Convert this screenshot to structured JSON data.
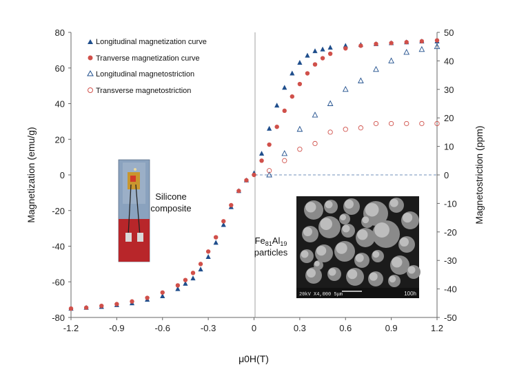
{
  "chart_data": {
    "type": "scatter",
    "title": "",
    "xlabel": "μ0H(T)",
    "ylabel": "Magnetization (emu/g)",
    "y2label": "Magnetostriction (ppm)",
    "xlim": [
      -1.2,
      1.2
    ],
    "ylim": [
      -80,
      80
    ],
    "y2lim": [
      -50,
      50
    ],
    "x_ticks": [
      "-1.2",
      "-0.9",
      "-0.6",
      "-0.3",
      "0",
      "0.3",
      "0.6",
      "0.9",
      "1.2"
    ],
    "y_ticks": [
      "80",
      "60",
      "40",
      "20",
      "0",
      "-20",
      "-40",
      "-60",
      "-80"
    ],
    "y2_ticks": [
      "50",
      "40",
      "30",
      "20",
      "10",
      "0",
      "-10",
      "-20",
      "-30",
      "-40",
      "-50"
    ],
    "grid": false,
    "legend_position": "top",
    "series": [
      {
        "name": "Longitudinal magnetization curve",
        "marker": "triangle-filled",
        "color": "#1f4e8c",
        "axis": "left",
        "x": [
          -1.2,
          -1.1,
          -1.0,
          -0.9,
          -0.8,
          -0.7,
          -0.6,
          -0.5,
          -0.45,
          -0.4,
          -0.35,
          -0.3,
          -0.25,
          -0.2,
          -0.15,
          -0.1,
          -0.05,
          0.0,
          0.05,
          0.1,
          0.15,
          0.2,
          0.25,
          0.3,
          0.35,
          0.4,
          0.45,
          0.5,
          0.6,
          0.7,
          0.8,
          0.9,
          1.0,
          1.1,
          1.2
        ],
        "y": [
          -75,
          -74.5,
          -74,
          -73,
          -72,
          -70,
          -68,
          -64,
          -61,
          -58,
          -53,
          -46,
          -38,
          -28,
          -18,
          -9,
          -3,
          1,
          12,
          26,
          39,
          49,
          57,
          63,
          67,
          69.5,
          70.5,
          71.5,
          72.5,
          73,
          73.5,
          74,
          74.5,
          75,
          75
        ]
      },
      {
        "name": "Tranverse magnetization curve",
        "marker": "circle-filled",
        "color": "#d0504a",
        "axis": "left",
        "x": [
          -1.2,
          -1.1,
          -1.0,
          -0.9,
          -0.8,
          -0.7,
          -0.6,
          -0.5,
          -0.45,
          -0.4,
          -0.35,
          -0.3,
          -0.25,
          -0.2,
          -0.15,
          -0.1,
          -0.05,
          0.0,
          0.05,
          0.1,
          0.15,
          0.2,
          0.25,
          0.3,
          0.35,
          0.4,
          0.45,
          0.5,
          0.6,
          0.7,
          0.8,
          0.9,
          1.0,
          1.1,
          1.2
        ],
        "y": [
          -75,
          -74.5,
          -73.5,
          -72.5,
          -71,
          -69,
          -66,
          -62,
          -59,
          -55,
          -50,
          -43,
          -35,
          -26,
          -17,
          -9,
          -3,
          0,
          8,
          17,
          27,
          36,
          44,
          51,
          57,
          62,
          65.5,
          68,
          71,
          72.5,
          73.5,
          74,
          74.5,
          75,
          75.5
        ]
      },
      {
        "name": "Longitudinal magnetostriction",
        "marker": "triangle-open",
        "color": "#1f4e8c",
        "axis": "right",
        "x": [
          0.1,
          0.2,
          0.3,
          0.4,
          0.5,
          0.6,
          0.7,
          0.8,
          0.9,
          1.0,
          1.1,
          1.2
        ],
        "y": [
          0,
          7.5,
          16,
          21,
          25,
          30,
          33,
          37,
          40,
          43,
          44,
          45
        ]
      },
      {
        "name": "Transverse magnetostriction",
        "marker": "circle-open",
        "color": "#d0504a",
        "axis": "right",
        "x": [
          0.1,
          0.2,
          0.3,
          0.4,
          0.5,
          0.6,
          0.7,
          0.8,
          0.9,
          1.0,
          1.1,
          1.2
        ],
        "y": [
          1.5,
          5,
          9,
          11,
          15,
          16,
          16.5,
          18,
          18,
          18,
          18,
          18
        ]
      }
    ],
    "annotations": {
      "silicone": [
        "Silicone",
        "composite"
      ],
      "particles_main": "Fe",
      "particles_sub1": "81",
      "particles_mid": "Al",
      "particles_sub2": "19",
      "particles_line2": "particles",
      "sem_scale": "20kV   X4,000    5μm",
      "sem_label": "100h"
    }
  }
}
